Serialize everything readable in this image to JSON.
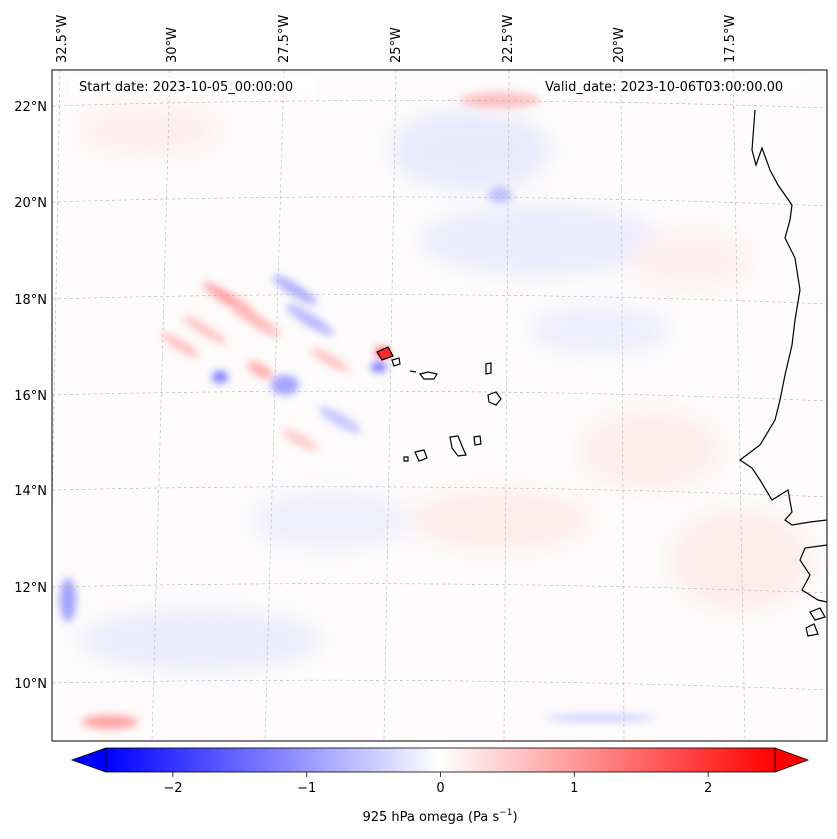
{
  "header": {
    "start_date": "Start date: 2023-10-05_00:00:00",
    "valid_date": "Valid_date: 2023-10-06T03:00:00.00"
  },
  "map": {
    "top_longitude_labels": [
      "32.5°W",
      "30°W",
      "27.5°W",
      "25°W",
      "22.5°W",
      "20°W",
      "17.5°W"
    ],
    "left_latitude_labels": [
      "22°N",
      "20°N",
      "18°N",
      "16°N",
      "14°N",
      "12°N",
      "10°N"
    ],
    "grid": true,
    "colors": {
      "negative": "#0000ff",
      "neutral": "#ffffff",
      "positive": "#ff0000",
      "coastline": "#000000"
    }
  },
  "colorbar": {
    "ticks": [
      "−2",
      "−1",
      "0",
      "1",
      "2"
    ],
    "tick_values": [
      -2,
      -1,
      0,
      1,
      2
    ],
    "range": [
      -2.5,
      2.5
    ],
    "extend": "both",
    "label_main": "925 hPa omega (Pa s",
    "label_exp": "−1",
    "label_close": ")"
  }
}
